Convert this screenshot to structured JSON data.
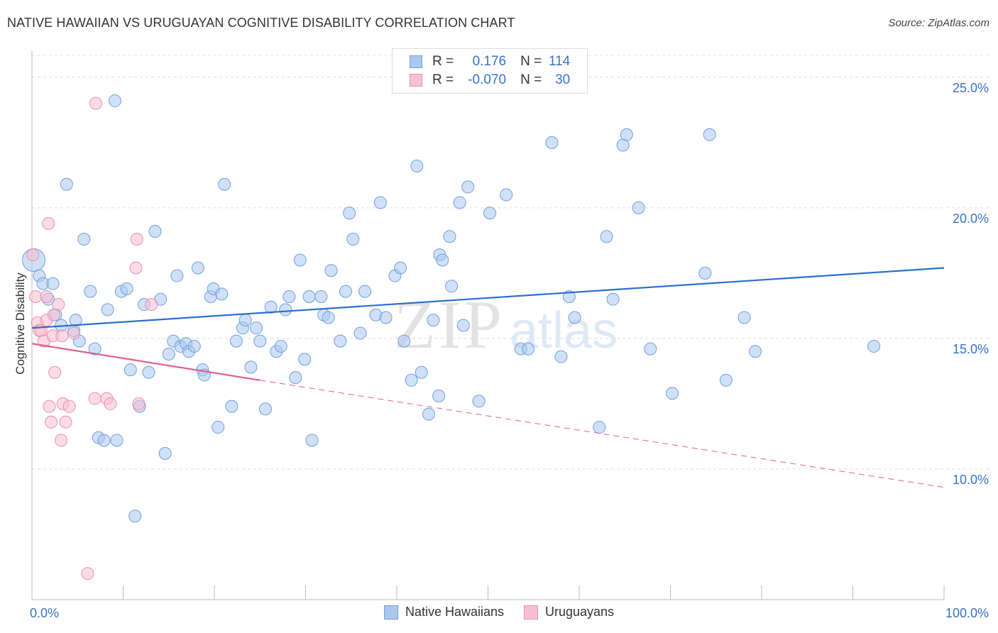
{
  "header": {
    "title": "NATIVE HAWAIIAN VS URUGUAYAN COGNITIVE DISABILITY CORRELATION CHART",
    "source": "Source: ZipAtlas.com"
  },
  "legend": {
    "r_label": "R =",
    "n_label": "N =",
    "rows": [
      {
        "r": "0.176",
        "n": "114",
        "color": "#a9c8f0",
        "border": "#6f9fe0"
      },
      {
        "r": "-0.070",
        "n": "30",
        "color": "#f7c0d2",
        "border": "#e98fae"
      }
    ]
  },
  "watermark": {
    "zip": "ZIP",
    "atlas": "atlas"
  },
  "chart_data": {
    "type": "scatter",
    "title": "NATIVE HAWAIIAN VS URUGUAYAN COGNITIVE DISABILITY CORRELATION CHART",
    "xlabel": "",
    "ylabel": "Cognitive Disability",
    "xlim": [
      0,
      100
    ],
    "ylim": [
      5,
      26
    ],
    "x_tick_labels": [
      "0.0%",
      "100.0%"
    ],
    "y_ticks": [
      10,
      15,
      20,
      25
    ],
    "y_tick_labels": [
      "10.0%",
      "15.0%",
      "20.0%",
      "25.0%"
    ],
    "grid": true,
    "series": [
      {
        "name": "Native Hawaiians",
        "color": "#a9c8f0",
        "stroke": "#6f9fe0",
        "trend": {
          "x0": 0,
          "y0": 15.4,
          "x1": 100,
          "y1": 17.7,
          "color": "#2b6fcc"
        },
        "points": [
          [
            0.2,
            18.0
          ],
          [
            0.8,
            17.4
          ],
          [
            1.2,
            17.1
          ],
          [
            1.8,
            16.5
          ],
          [
            2.3,
            17.1
          ],
          [
            2.6,
            15.9
          ],
          [
            3.2,
            15.5
          ],
          [
            3.8,
            20.9
          ],
          [
            4.6,
            15.3
          ],
          [
            4.8,
            15.7
          ],
          [
            5.2,
            14.9
          ],
          [
            5.7,
            18.8
          ],
          [
            6.4,
            16.8
          ],
          [
            6.9,
            14.6
          ],
          [
            7.3,
            11.2
          ],
          [
            7.9,
            11.1
          ],
          [
            8.3,
            16.1
          ],
          [
            9.1,
            24.1
          ],
          [
            9.3,
            11.1
          ],
          [
            9.8,
            16.8
          ],
          [
            10.4,
            16.9
          ],
          [
            10.8,
            13.8
          ],
          [
            11.3,
            8.2
          ],
          [
            11.8,
            12.4
          ],
          [
            12.3,
            16.3
          ],
          [
            12.8,
            13.7
          ],
          [
            13.5,
            19.1
          ],
          [
            14.1,
            16.5
          ],
          [
            14.6,
            10.6
          ],
          [
            15.0,
            14.4
          ],
          [
            15.5,
            14.9
          ],
          [
            15.9,
            17.4
          ],
          [
            16.3,
            14.7
          ],
          [
            16.9,
            14.8
          ],
          [
            17.2,
            14.5
          ],
          [
            17.8,
            14.7
          ],
          [
            18.2,
            17.7
          ],
          [
            18.7,
            13.8
          ],
          [
            18.9,
            13.6
          ],
          [
            19.6,
            16.6
          ],
          [
            19.9,
            16.9
          ],
          [
            20.4,
            11.6
          ],
          [
            20.8,
            16.7
          ],
          [
            21.1,
            20.9
          ],
          [
            21.9,
            12.4
          ],
          [
            22.4,
            14.9
          ],
          [
            23.1,
            15.4
          ],
          [
            23.4,
            15.7
          ],
          [
            24.0,
            13.9
          ],
          [
            24.6,
            15.4
          ],
          [
            25.0,
            14.9
          ],
          [
            25.6,
            12.3
          ],
          [
            26.2,
            16.2
          ],
          [
            26.8,
            14.5
          ],
          [
            27.3,
            14.7
          ],
          [
            27.8,
            16.1
          ],
          [
            28.2,
            16.6
          ],
          [
            28.9,
            13.5
          ],
          [
            29.4,
            18.0
          ],
          [
            29.9,
            14.2
          ],
          [
            30.4,
            16.6
          ],
          [
            30.7,
            11.1
          ],
          [
            31.7,
            16.6
          ],
          [
            32.0,
            15.9
          ],
          [
            32.5,
            15.8
          ],
          [
            32.8,
            17.6
          ],
          [
            33.8,
            14.9
          ],
          [
            34.4,
            16.8
          ],
          [
            34.8,
            19.8
          ],
          [
            35.2,
            18.8
          ],
          [
            36.0,
            15.2
          ],
          [
            36.5,
            16.8
          ],
          [
            37.7,
            15.9
          ],
          [
            38.2,
            20.2
          ],
          [
            38.8,
            15.8
          ],
          [
            39.8,
            17.4
          ],
          [
            40.4,
            17.7
          ],
          [
            40.8,
            14.9
          ],
          [
            41.6,
            13.4
          ],
          [
            42.2,
            21.6
          ],
          [
            42.7,
            13.7
          ],
          [
            43.5,
            12.1
          ],
          [
            44.0,
            15.7
          ],
          [
            44.6,
            12.8
          ],
          [
            44.7,
            18.2
          ],
          [
            45.0,
            18.0
          ],
          [
            45.8,
            18.9
          ],
          [
            46.0,
            17.0
          ],
          [
            46.9,
            20.2
          ],
          [
            47.3,
            15.5
          ],
          [
            47.8,
            20.8
          ],
          [
            49.0,
            12.6
          ],
          [
            50.2,
            19.8
          ],
          [
            52.0,
            20.5
          ],
          [
            53.6,
            14.6
          ],
          [
            54.4,
            14.6
          ],
          [
            57.0,
            22.5
          ],
          [
            58.0,
            14.3
          ],
          [
            58.9,
            16.6
          ],
          [
            59.5,
            15.8
          ],
          [
            62.2,
            11.6
          ],
          [
            63.0,
            18.9
          ],
          [
            63.7,
            16.5
          ],
          [
            64.8,
            22.4
          ],
          [
            65.2,
            22.8
          ],
          [
            66.5,
            20.0
          ],
          [
            67.8,
            14.6
          ],
          [
            70.2,
            12.9
          ],
          [
            73.8,
            17.5
          ],
          [
            74.3,
            22.8
          ],
          [
            76.1,
            13.4
          ],
          [
            78.1,
            15.8
          ],
          [
            79.3,
            14.5
          ],
          [
            92.3,
            14.7
          ]
        ]
      },
      {
        "name": "Uruguayans",
        "color": "#f7c0d2",
        "stroke": "#e98fae",
        "trend": {
          "x0": 0,
          "y0": 14.8,
          "x1": 25,
          "y1": 13.4,
          "dash_x1": 100,
          "dash_y1": 9.3,
          "color": "#e0608f"
        },
        "points": [
          [
            0.1,
            18.2
          ],
          [
            0.4,
            16.6
          ],
          [
            0.6,
            15.6
          ],
          [
            0.8,
            15.3
          ],
          [
            1.0,
            15.3
          ],
          [
            1.3,
            14.9
          ],
          [
            1.6,
            16.6
          ],
          [
            1.6,
            15.7
          ],
          [
            1.8,
            19.4
          ],
          [
            1.9,
            12.4
          ],
          [
            2.1,
            11.8
          ],
          [
            2.3,
            15.1
          ],
          [
            2.4,
            15.9
          ],
          [
            2.5,
            13.7
          ],
          [
            2.9,
            16.3
          ],
          [
            3.2,
            11.1
          ],
          [
            3.3,
            15.1
          ],
          [
            3.4,
            12.5
          ],
          [
            3.7,
            11.8
          ],
          [
            4.1,
            12.4
          ],
          [
            4.6,
            15.2
          ],
          [
            6.1,
            6.0
          ],
          [
            6.9,
            12.7
          ],
          [
            7.0,
            24.0
          ],
          [
            8.2,
            12.7
          ],
          [
            8.6,
            12.5
          ],
          [
            11.4,
            17.7
          ],
          [
            11.5,
            18.8
          ],
          [
            11.7,
            12.5
          ],
          [
            13.1,
            16.3
          ]
        ]
      }
    ]
  }
}
